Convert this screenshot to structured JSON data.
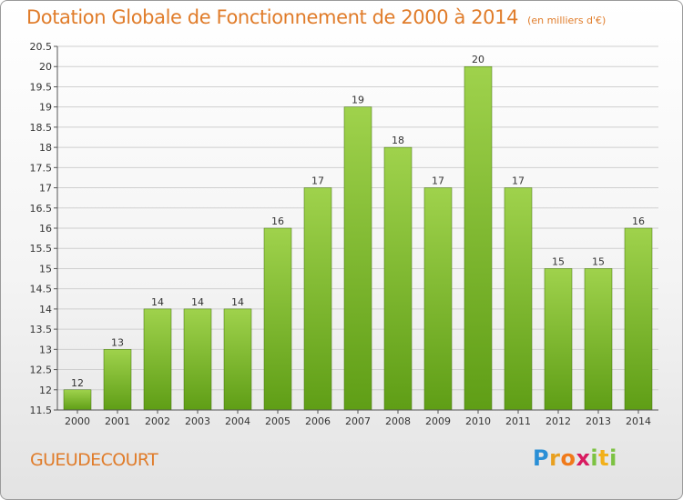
{
  "title": "Dotation Globale de Fonctionnement de 2000 à 2014",
  "unit": "(en milliers d'€)",
  "commune": "GUEUDECOURT",
  "logo_text": "Proxiti",
  "colors": {
    "title": "#e07c2a",
    "bar_top": "#9fd24c",
    "bar_bottom": "#5f9e16",
    "grid": "#cccccc",
    "axis_text": "#333333"
  },
  "chart_data": {
    "type": "bar",
    "categories": [
      "2000",
      "2001",
      "2002",
      "2003",
      "2004",
      "2005",
      "2006",
      "2007",
      "2008",
      "2009",
      "2010",
      "2011",
      "2012",
      "2013",
      "2014"
    ],
    "values": [
      12,
      13,
      14,
      14,
      14,
      16,
      17,
      19,
      18,
      17,
      20,
      17,
      15,
      15,
      16
    ],
    "value_labels": [
      "12",
      "13",
      "14",
      "14",
      "14",
      "16",
      "17",
      "19",
      "18",
      "17",
      "20",
      "17",
      "15",
      "15",
      "16"
    ],
    "ylim": [
      11.5,
      20.5
    ],
    "yticks": [
      11.5,
      12,
      12.5,
      13,
      13.5,
      14,
      14.5,
      15,
      15.5,
      16,
      16.5,
      17,
      17.5,
      18,
      18.5,
      19,
      19.5,
      20,
      20.5
    ],
    "ytick_labels": [
      "11.5",
      "12",
      "12.5",
      "13",
      "13.5",
      "14",
      "14.5",
      "15",
      "15.5",
      "16",
      "16.5",
      "17",
      "17.5",
      "18",
      "18.5",
      "19",
      "19.5",
      "20",
      "20.5"
    ],
    "grid": true,
    "legend": "none"
  }
}
